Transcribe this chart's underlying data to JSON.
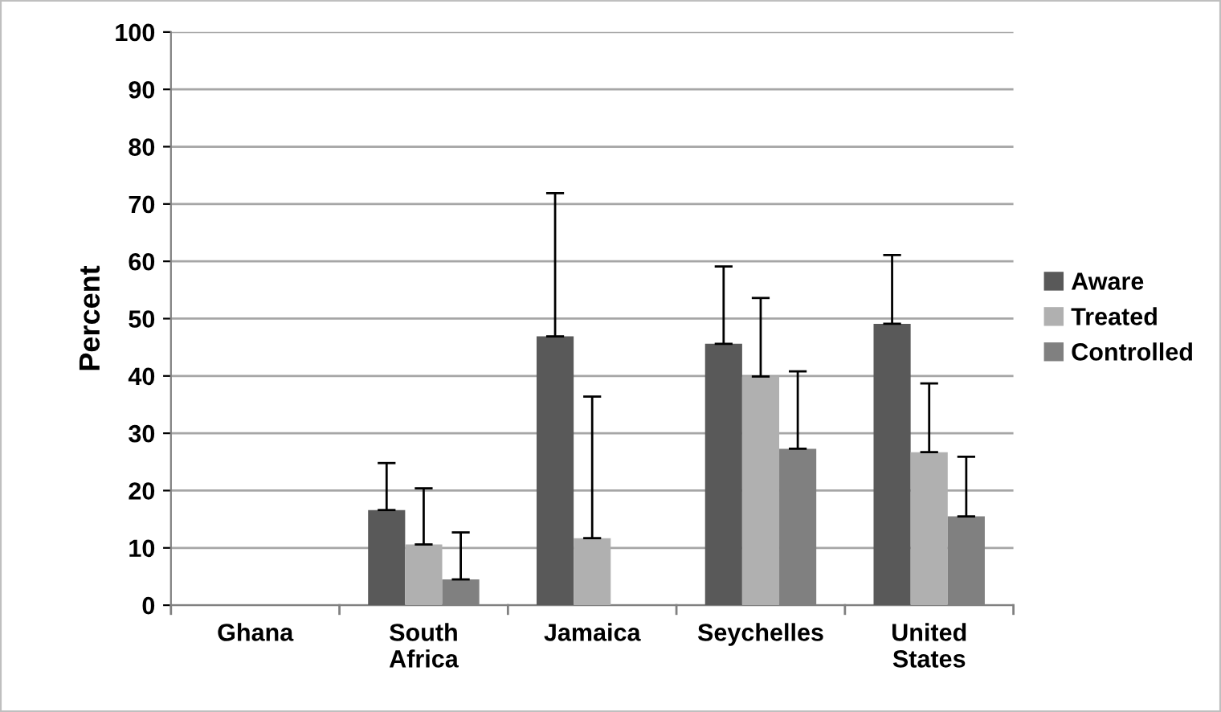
{
  "chart_data": {
    "type": "bar",
    "ylabel": "Percent",
    "categories": [
      "Ghana",
      "South\nAfrica",
      "Jamaica",
      "Seychelles",
      "United\nStates"
    ],
    "series": [
      {
        "name": "Aware",
        "color": "#595959",
        "values": [
          null,
          16.6,
          46.9,
          45.6,
          49.1
        ],
        "errors": [
          null,
          [
            16.6,
            24.8
          ],
          [
            46.9,
            71.9
          ],
          [
            45.6,
            59.1
          ],
          [
            49.1,
            61.1
          ]
        ]
      },
      {
        "name": "Treated",
        "color": "#b0b0b0",
        "values": [
          null,
          10.6,
          11.7,
          39.9,
          26.7
        ],
        "errors": [
          null,
          [
            10.6,
            20.4
          ],
          [
            11.7,
            36.4
          ],
          [
            39.9,
            53.6
          ],
          [
            26.7,
            38.7
          ]
        ]
      },
      {
        "name": "Controlled",
        "color": "#808080",
        "values": [
          null,
          4.5,
          null,
          27.3,
          15.5
        ],
        "errors": [
          null,
          [
            4.5,
            12.7
          ],
          null,
          [
            27.3,
            40.8
          ],
          [
            15.5,
            25.9
          ]
        ]
      }
    ],
    "ylim": [
      0,
      100
    ],
    "yticks": [
      0,
      10,
      20,
      30,
      40,
      50,
      60,
      70,
      80,
      90,
      100
    ],
    "grid": "y",
    "legend": "right"
  }
}
